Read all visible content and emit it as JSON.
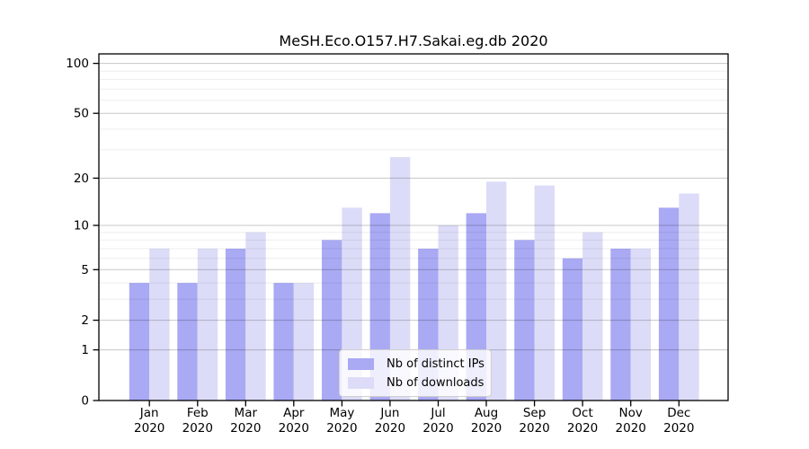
{
  "chart_data": {
    "type": "bar",
    "title": "MeSH.Eco.O157.H7.Sakai.eg.db 2020",
    "year": "2020",
    "categories": [
      "Jan",
      "Feb",
      "Mar",
      "Apr",
      "May",
      "Jun",
      "Jul",
      "Aug",
      "Sep",
      "Oct",
      "Nov",
      "Dec"
    ],
    "series": [
      {
        "name": "Nb of distinct IPs",
        "color": "#a9a9f4",
        "values": [
          4,
          4,
          7,
          4,
          8,
          12,
          7,
          12,
          8,
          6,
          7,
          13
        ]
      },
      {
        "name": "Nb of downloads",
        "color": "#dcdcf8",
        "values": [
          7,
          7,
          9,
          4,
          13,
          27,
          10,
          19,
          18,
          9,
          7,
          16
        ]
      }
    ],
    "yscale": "log1p",
    "ylim": [
      0,
      100
    ],
    "y_tick_values": [
      0,
      1,
      2,
      5,
      10,
      20,
      50,
      100
    ],
    "y_tick_labels": [
      "0",
      "1",
      "2",
      "5",
      "10",
      "20",
      "50",
      "100"
    ],
    "y_minor_gridlines": [
      3,
      4,
      6,
      7,
      8,
      9,
      30,
      40,
      60,
      70,
      80,
      90
    ],
    "grid": true,
    "legend_position": "lower center",
    "colors": {
      "grid_major": "rgba(0,0,0,0.22)",
      "grid_minor": "rgba(0,0,0,0.07)",
      "axis": "#000000",
      "text": "#000000"
    }
  }
}
